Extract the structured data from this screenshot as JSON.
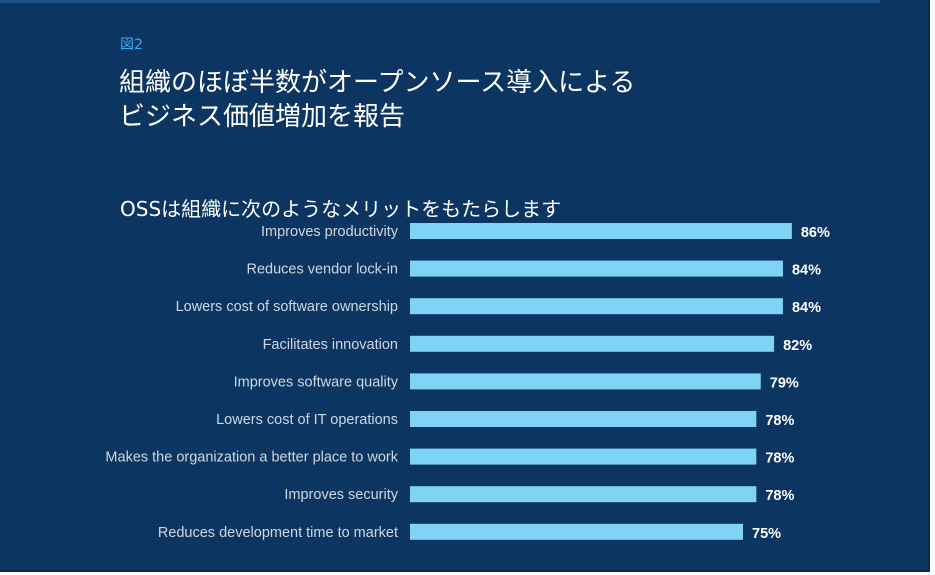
{
  "figure_label": "図2",
  "title_lines": [
    "組織のほぼ半数がオープンソース導入による",
    "ビジネス価値増加を報告"
  ],
  "subtitle": "OSSは組織に次のようなメリットをもたらします",
  "colors": {
    "background": "#0c3561",
    "bar": "#7fd3f4",
    "figure_label": "#3fa9f5",
    "category_text": "#cfd7e2",
    "value_text": "#ffffff"
  },
  "chart_data": {
    "type": "bar",
    "orientation": "horizontal",
    "title": "OSSは組織に次のようなメリットをもたらします",
    "categories": [
      "Improves productivity",
      "Reduces vendor lock-in",
      "Lowers cost of software ownership",
      "Facilitates innovation",
      "Improves software quality",
      "Lowers cost of IT operations",
      "Makes the organization a better place to work",
      "Improves security",
      "Reduces development time to market"
    ],
    "values": [
      86,
      84,
      84,
      82,
      79,
      78,
      78,
      78,
      75
    ],
    "value_labels": [
      "86%",
      "84%",
      "84%",
      "82%",
      "79%",
      "78%",
      "78%",
      "78%",
      "75%"
    ],
    "unit": "%",
    "xlim": [
      0,
      100
    ],
    "grid": false,
    "legend": "none"
  }
}
